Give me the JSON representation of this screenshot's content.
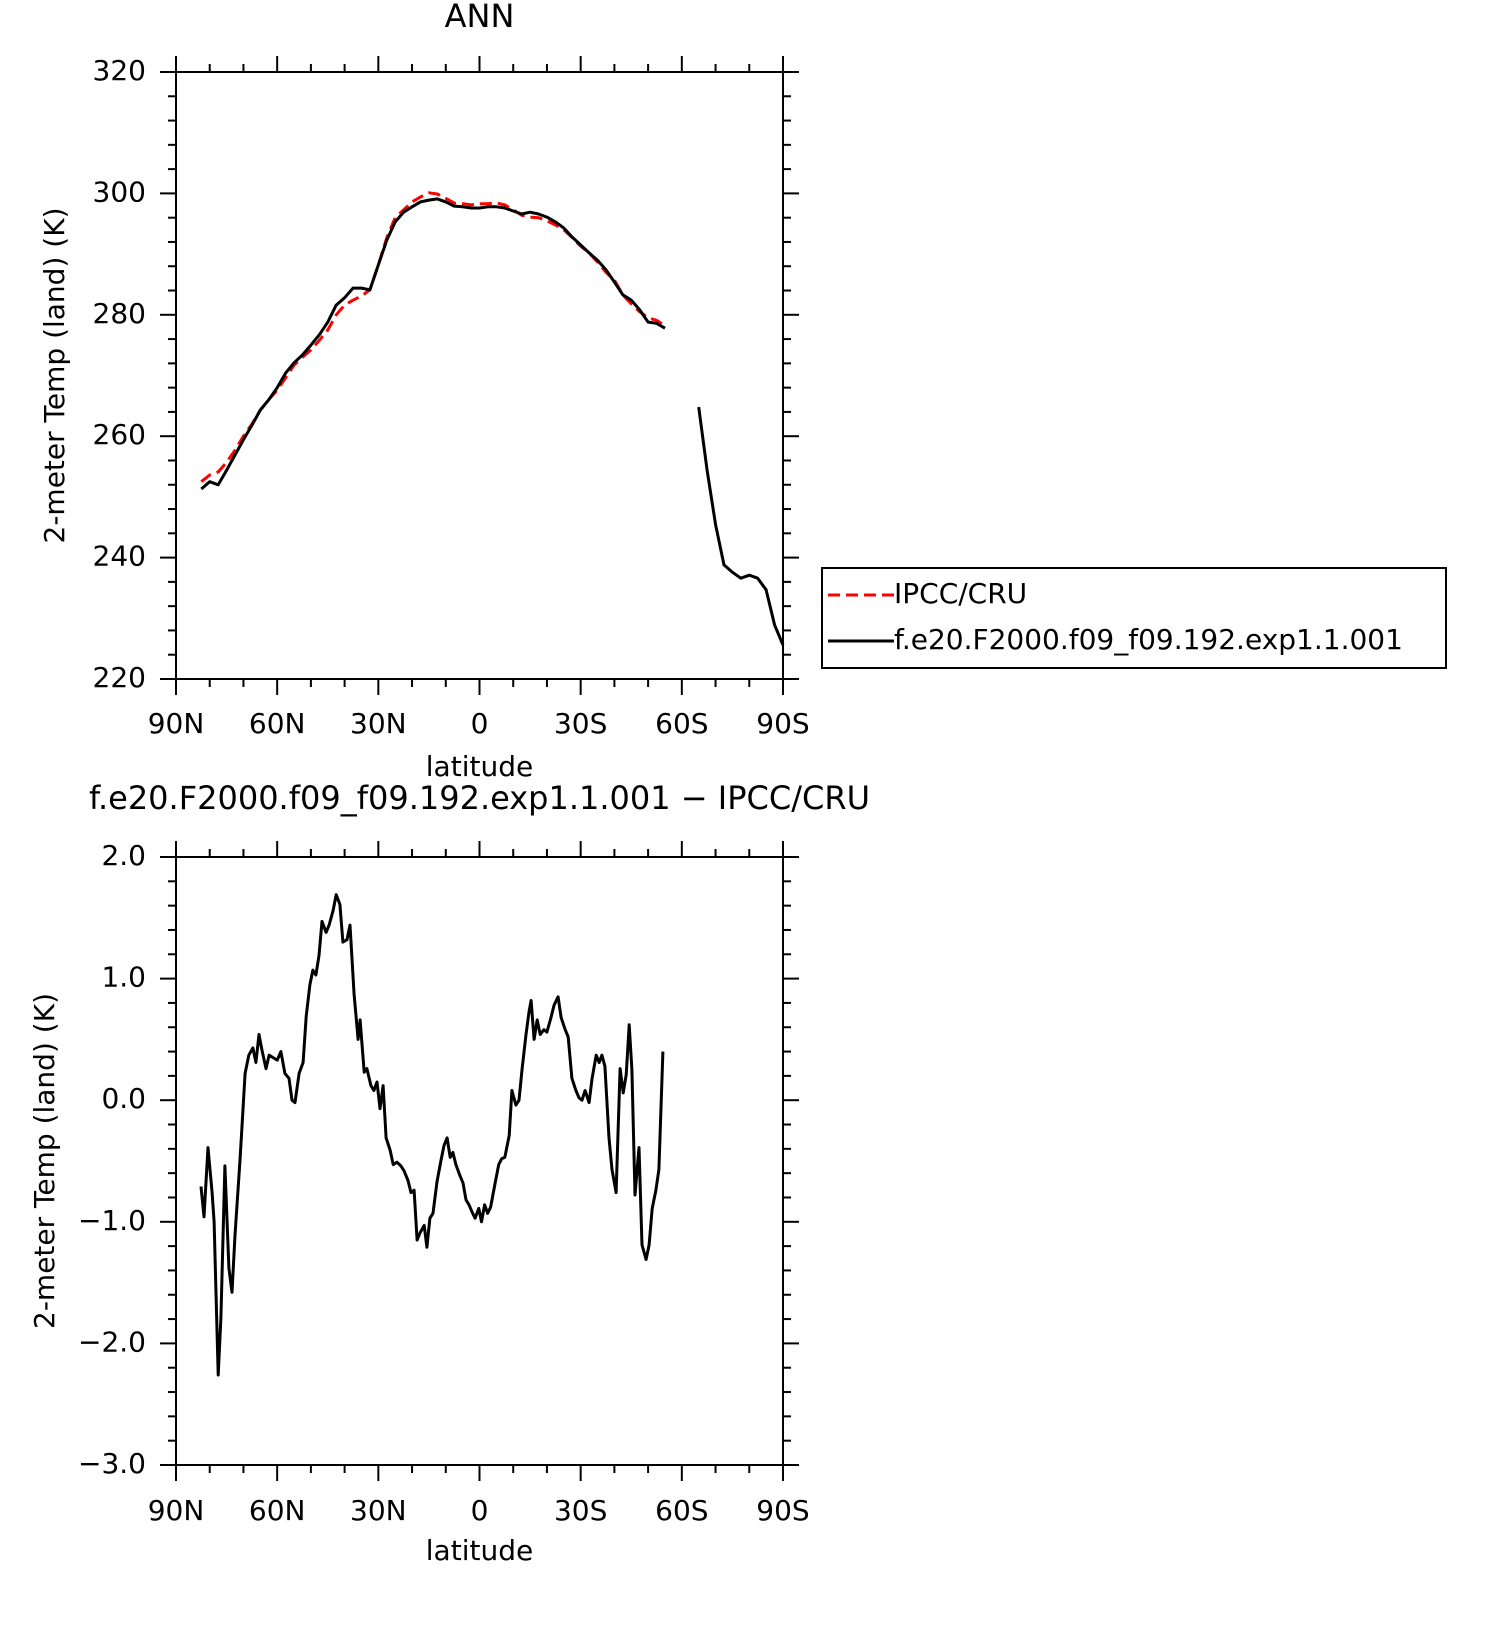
{
  "chart_data": [
    {
      "type": "line",
      "title": "ANN",
      "xlabel": "latitude",
      "ylabel": "2-meter Temp (land) (K)",
      "xlim": [
        90,
        -90
      ],
      "xticks": [
        {
          "value": 90,
          "label": "90N"
        },
        {
          "value": 60,
          "label": "60N"
        },
        {
          "value": 30,
          "label": "30N"
        },
        0,
        {
          "value": -30,
          "label": "30S"
        },
        {
          "value": -60,
          "label": "60S"
        },
        {
          "value": -90,
          "label": "90S"
        }
      ],
      "ylim": [
        220,
        320
      ],
      "yticks": [
        220,
        240,
        260,
        280,
        300,
        320
      ],
      "x": [
        82.5,
        80,
        77.5,
        75,
        72.5,
        70,
        67.5,
        65,
        62.5,
        60,
        57.5,
        55,
        52.5,
        50,
        47.5,
        45,
        42.5,
        40,
        37.5,
        35,
        32.5,
        30,
        27.5,
        25,
        22.5,
        20,
        17.5,
        15,
        12.5,
        10,
        7.5,
        5,
        2.5,
        0,
        -2.5,
        -5,
        -7.5,
        -10,
        -12.5,
        -15,
        -17.5,
        -20,
        -22.5,
        -25,
        -27.5,
        -30,
        -32.5,
        -35,
        -37.5,
        -40,
        -42.5,
        -45,
        -47.5,
        -50,
        -52.5,
        -55,
        -57.5,
        -60,
        -62.5,
        -65,
        -67.5,
        -70,
        -72.5,
        -75,
        -77.5,
        -80,
        -82.5,
        -85,
        -87.5,
        -90
      ],
      "series": [
        {
          "name": "IPCC/CRU",
          "color": "#ff0000",
          "dash": "dashed",
          "values": [
            252.5,
            253.6,
            254.1,
            255.7,
            257.7,
            260.0,
            262.0,
            264.3,
            266.0,
            267.6,
            269.6,
            271.7,
            273.0,
            274.2,
            275.8,
            277.5,
            280.0,
            281.6,
            282.4,
            283.1,
            284.1,
            288.2,
            292.7,
            296.0,
            297.3,
            298.6,
            299.4,
            300.1,
            299.9,
            299.2,
            298.4,
            298.3,
            298.1,
            298.3,
            298.3,
            298.4,
            298.1,
            297.3,
            296.4,
            296.1,
            296.0,
            295.5,
            294.8,
            294.0,
            292.7,
            291.3,
            290.2,
            288.7,
            287.0,
            285.7,
            283.3,
            281.8,
            280.5,
            279.5,
            279.1,
            278.2,
            null,
            null,
            null,
            null,
            null,
            null,
            null,
            null,
            null,
            null,
            null,
            null,
            null,
            null
          ]
        },
        {
          "name": "f.e20.F2000.f09_f09.192.exp1.1.001",
          "color": "#000000",
          "dash": "solid",
          "values": [
            251.3,
            252.5,
            252.0,
            254.4,
            256.9,
            259.4,
            261.8,
            264.3,
            266.0,
            268.0,
            270.4,
            272.1,
            273.4,
            275.0,
            276.7,
            278.8,
            281.6,
            282.8,
            284.4,
            284.4,
            284.1,
            288.2,
            292.3,
            295.3,
            296.9,
            297.8,
            298.6,
            298.9,
            299.1,
            298.6,
            297.9,
            297.8,
            297.6,
            297.6,
            297.8,
            297.8,
            297.6,
            297.1,
            296.6,
            296.9,
            296.6,
            296.1,
            295.3,
            294.3,
            292.8,
            291.5,
            290.2,
            289.0,
            287.4,
            285.4,
            283.3,
            282.4,
            280.8,
            278.8,
            278.6,
            277.8,
            null,
            null,
            null,
            264.8,
            254.4,
            245.4,
            238.8,
            237.6,
            236.6,
            237.1,
            236.6,
            234.7,
            228.9,
            225.6
          ]
        }
      ]
    },
    {
      "type": "line",
      "title": "f.e20.F2000.f09_f09.192.exp1.1.001 − IPCC/CRU",
      "xlabel": "latitude",
      "ylabel": "2-meter Temp (land) (K)",
      "xlim": [
        90,
        -90
      ],
      "xticks": [
        {
          "value": 90,
          "label": "90N"
        },
        {
          "value": 60,
          "label": "60N"
        },
        {
          "value": 30,
          "label": "30N"
        },
        0,
        {
          "value": -30,
          "label": "30S"
        },
        {
          "value": -60,
          "label": "60S"
        },
        {
          "value": -90,
          "label": "90S"
        }
      ],
      "ylim": [
        -3,
        2
      ],
      "yticks": [
        {
          "value": -3,
          "label": "−3.0"
        },
        {
          "value": -2,
          "label": "−2.0"
        },
        {
          "value": -1,
          "label": "−1.0"
        },
        {
          "value": 0,
          "label": "0.0"
        },
        {
          "value": 1,
          "label": "1.0"
        },
        {
          "value": 2,
          "label": "2.0"
        }
      ],
      "color": "#000000",
      "x": [
        82.6,
        81.7,
        80.5,
        79.3,
        78.7,
        77.5,
        76.7,
        75.5,
        74.3,
        73.4,
        72.5,
        71.0,
        69.5,
        68.4,
        67.2,
        66.3,
        65.4,
        64.5,
        63.3,
        62.4,
        61.2,
        60.0,
        58.9,
        57.7,
        56.5,
        55.6,
        54.7,
        53.5,
        52.3,
        51.4,
        50.3,
        49.4,
        48.5,
        47.6,
        46.7,
        45.5,
        44.6,
        43.4,
        42.5,
        41.4,
        40.5,
        39.3,
        38.4,
        37.2,
        36.0,
        35.4,
        34.2,
        33.4,
        32.2,
        31.3,
        30.4,
        29.5,
        28.6,
        27.7,
        26.5,
        25.6,
        24.5,
        23.3,
        22.4,
        21.2,
        20.3,
        19.4,
        18.5,
        17.6,
        16.4,
        15.6,
        14.7,
        13.8,
        12.6,
        11.4,
        10.5,
        9.6,
        8.7,
        7.9,
        7.0,
        5.8,
        4.9,
        4.0,
        3.1,
        2.2,
        1.3,
        0.2,
        -0.6,
        -1.5,
        -2.4,
        -3.3,
        -4.5,
        -5.7,
        -6.6,
        -7.5,
        -8.8,
        -9.6,
        -10.8,
        -11.7,
        -12.6,
        -13.8,
        -14.7,
        -15.3,
        -16.2,
        -17.1,
        -18.0,
        -19.1,
        -20.0,
        -21.2,
        -22.1,
        -23.3,
        -24.2,
        -25.4,
        -26.3,
        -27.4,
        -28.6,
        -29.5,
        -30.4,
        -31.3,
        -32.5,
        -33.4,
        -34.6,
        -35.5,
        -36.3,
        -37.2,
        -38.4,
        -39.3,
        -40.5,
        -41.7,
        -42.6,
        -43.5,
        -44.4,
        -45.2,
        -46.1,
        -47.3,
        -48.2,
        -49.4,
        -50.3,
        -51.2,
        -52.3,
        -53.2,
        -54.4
      ],
      "values": [
        -0.71,
        -0.96,
        -0.39,
        -0.76,
        -1.0,
        -2.26,
        -1.79,
        -0.54,
        -1.38,
        -1.58,
        -1.11,
        -0.48,
        0.22,
        0.37,
        0.43,
        0.31,
        0.54,
        0.41,
        0.26,
        0.37,
        0.35,
        0.33,
        0.4,
        0.22,
        0.18,
        0.0,
        -0.02,
        0.22,
        0.31,
        0.69,
        0.95,
        1.07,
        1.03,
        1.19,
        1.47,
        1.38,
        1.44,
        1.56,
        1.69,
        1.61,
        1.3,
        1.32,
        1.44,
        0.87,
        0.5,
        0.66,
        0.23,
        0.26,
        0.12,
        0.08,
        0.15,
        -0.07,
        0.12,
        -0.31,
        -0.41,
        -0.53,
        -0.51,
        -0.54,
        -0.58,
        -0.66,
        -0.76,
        -0.74,
        -1.15,
        -1.09,
        -1.03,
        -1.21,
        -0.97,
        -0.93,
        -0.67,
        -0.49,
        -0.37,
        -0.31,
        -0.47,
        -0.43,
        -0.53,
        -0.62,
        -0.68,
        -0.82,
        -0.86,
        -0.92,
        -0.97,
        -0.89,
        -1.0,
        -0.86,
        -0.93,
        -0.88,
        -0.7,
        -0.53,
        -0.48,
        -0.47,
        -0.29,
        0.08,
        -0.04,
        0.0,
        0.25,
        0.54,
        0.73,
        0.82,
        0.5,
        0.66,
        0.54,
        0.58,
        0.56,
        0.68,
        0.78,
        0.85,
        0.68,
        0.58,
        0.52,
        0.18,
        0.08,
        0.02,
        0.0,
        0.08,
        -0.02,
        0.18,
        0.37,
        0.31,
        0.37,
        0.28,
        -0.31,
        -0.57,
        -0.76,
        0.26,
        0.06,
        0.21,
        0.62,
        0.25,
        -0.78,
        -0.39,
        -1.19,
        -1.31,
        -1.19,
        -0.89,
        -0.74,
        -0.57,
        0.4
      ]
    }
  ]
}
